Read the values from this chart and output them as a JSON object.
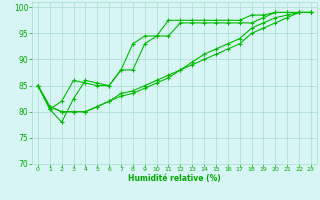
{
  "title": "",
  "xlabel": "Humidité relative (%)",
  "ylabel": "",
  "bg_color": "#d8f5f5",
  "grid_color": "#aaddcc",
  "line_color": "#00bb00",
  "tick_color": "#00aa00",
  "xlabel_color": "#00aa00",
  "xlim": [
    -0.5,
    23.5
  ],
  "ylim": [
    70,
    101
  ],
  "yticks": [
    70,
    75,
    80,
    85,
    90,
    95,
    100
  ],
  "xticks": [
    0,
    1,
    2,
    3,
    4,
    5,
    6,
    7,
    8,
    9,
    10,
    11,
    12,
    13,
    14,
    15,
    16,
    17,
    18,
    19,
    20,
    21,
    22,
    23
  ],
  "lines": [
    [
      85,
      80.5,
      78,
      82.5,
      86,
      85.5,
      85,
      88,
      88,
      93,
      94.5,
      97.5,
      97.5,
      97.5,
      97.5,
      97.5,
      97.5,
      97.5,
      98.5,
      98.5,
      99,
      99,
      99,
      99
    ],
    [
      85,
      80.5,
      82,
      86,
      85.5,
      85,
      85,
      88,
      93,
      94.5,
      94.5,
      94.5,
      97,
      97,
      97,
      97,
      97,
      97,
      97,
      98,
      99,
      99,
      99,
      99
    ],
    [
      85,
      81,
      80,
      80,
      80,
      81,
      82,
      83.5,
      84,
      85,
      86,
      87,
      88,
      89,
      90,
      91,
      92,
      93,
      95,
      96,
      97,
      98,
      99,
      99
    ],
    [
      85,
      81,
      80,
      80,
      80,
      81,
      82,
      83,
      83.5,
      84.5,
      85.5,
      86.5,
      88,
      89.5,
      91,
      92,
      93,
      94,
      96,
      97,
      98,
      98.5,
      99,
      99
    ]
  ]
}
